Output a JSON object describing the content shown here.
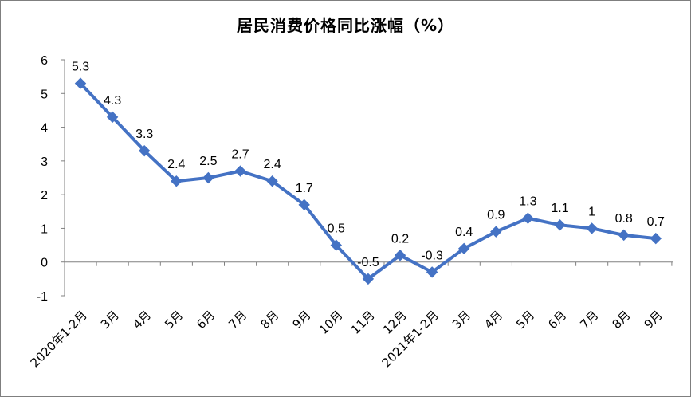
{
  "chart_data": {
    "type": "line",
    "title": "居民消费价格同比涨幅（%）",
    "xlabel": "",
    "ylabel": "",
    "ylim": [
      -1,
      6
    ],
    "yticks": [
      6,
      5,
      4,
      3,
      2,
      1,
      0,
      -1
    ],
    "grid": false,
    "legend": "none",
    "color": "#4472c4",
    "categories": [
      "2020年1-2月",
      "3月",
      "4月",
      "5月",
      "6月",
      "7月",
      "8月",
      "9月",
      "10月",
      "11月",
      "12月",
      "2021年1-2月",
      "3月",
      "4月",
      "5月",
      "6月",
      "7月",
      "8月",
      "9月"
    ],
    "values": [
      5.3,
      4.3,
      3.3,
      2.4,
      2.5,
      2.7,
      2.4,
      1.7,
      0.5,
      -0.5,
      0.2,
      -0.3,
      0.4,
      0.9,
      1.3,
      1.1,
      1,
      0.8,
      0.7
    ],
    "value_labels": [
      "5.3",
      "4.3",
      "3.3",
      "2.4",
      "2.5",
      "2.7",
      "2.4",
      "1.7",
      "0.5",
      "-0.5",
      "0.2",
      "-0.3",
      "0.4",
      "0.9",
      "1.3",
      "1.1",
      "1",
      "0.8",
      "0.7"
    ]
  }
}
